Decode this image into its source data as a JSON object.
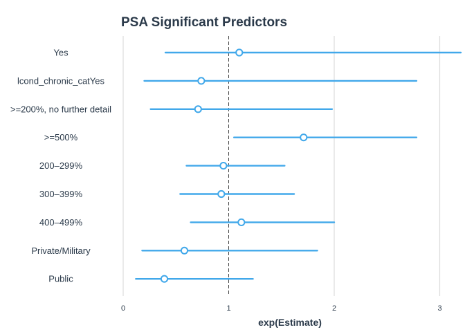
{
  "chart_data": {
    "type": "forest",
    "title": "PSA Significant Predictors",
    "xlabel": "exp(Estimate)",
    "ylabel": "",
    "xlim": [
      0,
      3
    ],
    "xticks": [
      0,
      1,
      2,
      3
    ],
    "reference_line": 1,
    "grid": "vertical",
    "colors": {
      "series": "#41a8ea",
      "point_fill": "#ffffff",
      "grid": "#dcdcdc",
      "reference": "#444444",
      "text": "#2b3a4a"
    },
    "rows": [
      {
        "label": "Yes",
        "estimate": 1.1,
        "low": 0.4,
        "high": 3.2
      },
      {
        "label": "lcond_chronic_catYes",
        "estimate": 0.74,
        "low": 0.2,
        "high": 2.78
      },
      {
        "label": ">=200%, no further detail",
        "estimate": 0.71,
        "low": 0.26,
        "high": 1.98
      },
      {
        "label": ">=500%",
        "estimate": 1.71,
        "low": 1.05,
        "high": 2.78
      },
      {
        "label": "200–299%",
        "estimate": 0.95,
        "low": 0.6,
        "high": 1.53
      },
      {
        "label": "300–399%",
        "estimate": 0.93,
        "low": 0.54,
        "high": 1.62
      },
      {
        "label": "400–499%",
        "estimate": 1.12,
        "low": 0.64,
        "high": 2.0
      },
      {
        "label": "Private/Military",
        "estimate": 0.58,
        "low": 0.18,
        "high": 1.84
      },
      {
        "label": "Public",
        "estimate": 0.39,
        "low": 0.12,
        "high": 1.23
      }
    ]
  }
}
